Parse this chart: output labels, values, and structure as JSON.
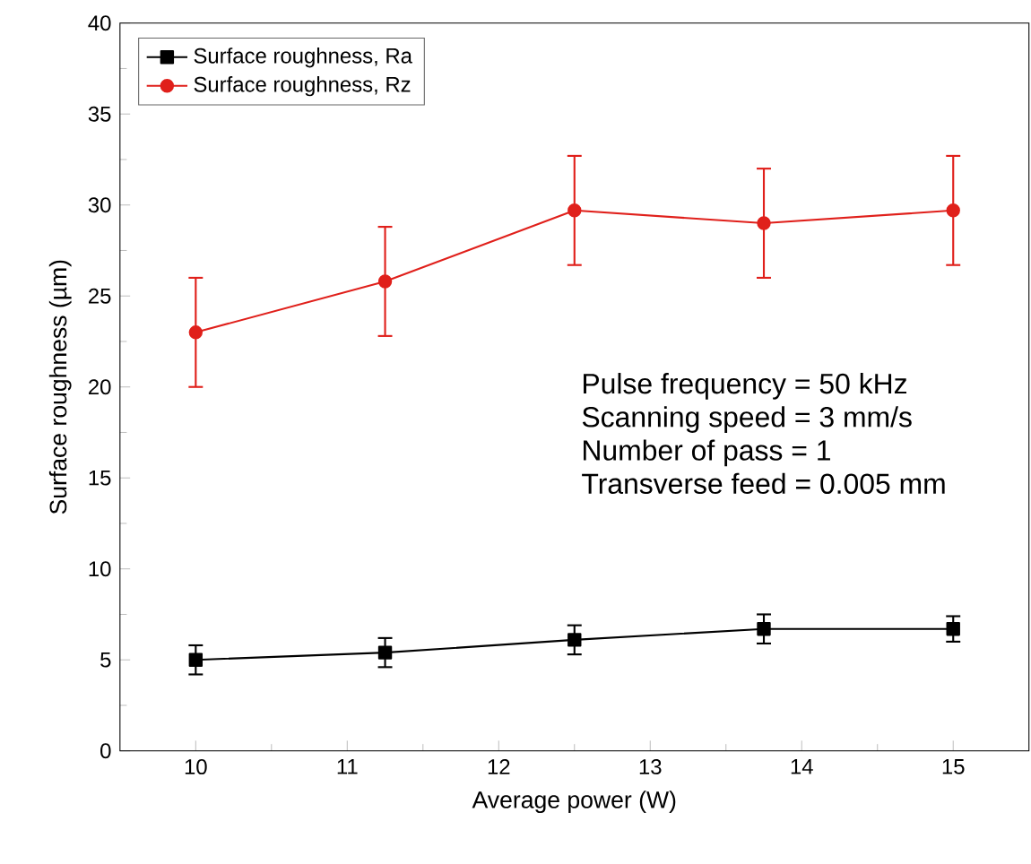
{
  "chart_data": {
    "type": "line",
    "xlabel": "Average power (W)",
    "ylabel": "Surface roughness (µm)",
    "x": [
      10,
      11.25,
      12.5,
      13.75,
      15
    ],
    "series": [
      {
        "name": "Surface roughness, Ra",
        "color": "#000000",
        "marker": "square",
        "values": [
          5.0,
          5.4,
          6.1,
          6.7,
          6.7
        ],
        "errors": [
          0.8,
          0.8,
          0.8,
          0.8,
          0.7
        ]
      },
      {
        "name": "Surface roughness, Rz",
        "color": "#e0201b",
        "marker": "circle",
        "values": [
          23.0,
          25.8,
          29.7,
          29.0,
          29.7
        ],
        "errors": [
          3,
          3,
          3,
          3,
          3
        ]
      }
    ],
    "xlim": [
      9.5,
      15.5
    ],
    "xticks": [
      10,
      11,
      12,
      13,
      14,
      15
    ],
    "ylim": [
      0,
      40
    ],
    "yticks": [
      0,
      5,
      10,
      15,
      20,
      25,
      30,
      35,
      40
    ],
    "legend": "top left",
    "grid": false,
    "annotations": [
      "Pulse frequency = 50 kHz",
      "Scanning speed = 3 mm/s",
      "Number of pass = 1",
      "Transverse feed = 0.005 mm"
    ]
  }
}
